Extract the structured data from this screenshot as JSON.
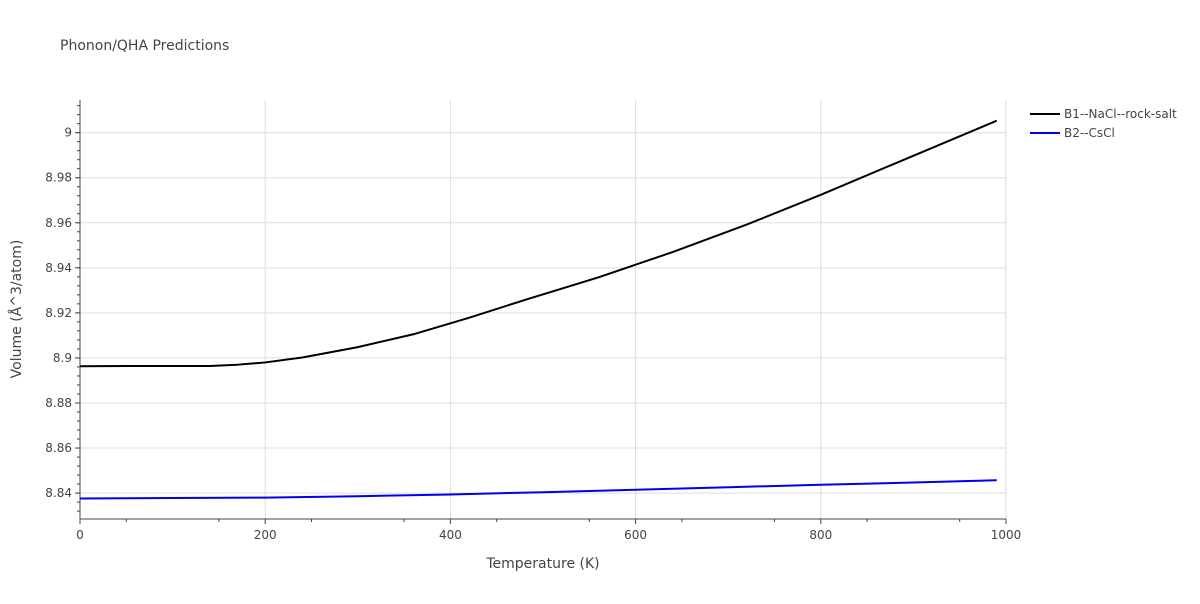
{
  "chart_data": {
    "type": "line",
    "title": "Phonon/QHA Predictions",
    "xlabel": "Temperature (K)",
    "ylabel": "Volume (Å^3/atom)",
    "xlim": [
      0,
      1000
    ],
    "ylim": [
      8.8285,
      9.0145
    ],
    "x_ticks": [
      0,
      200,
      400,
      600,
      800,
      1000
    ],
    "x_tick_labels": [
      "0",
      "200",
      "400",
      "600",
      "800",
      "1000"
    ],
    "y_ticks": [
      8.84,
      8.86,
      8.88,
      8.9,
      8.92,
      8.94,
      8.96,
      8.98,
      9.0
    ],
    "y_tick_labels": [
      "8.84",
      "8.86",
      "8.88",
      "8.9",
      "8.92",
      "8.94",
      "8.96",
      "8.98",
      "9"
    ],
    "grid": true,
    "legend_position": "top-right",
    "series": [
      {
        "name": "B1--NaCl--rock-salt",
        "color": "#000000",
        "x": [
          0,
          50,
          100,
          140,
          170,
          200,
          240,
          290,
          300,
          360,
          420,
          480,
          560,
          640,
          720,
          800,
          880,
          990
        ],
        "y": [
          8.8963,
          8.8964,
          8.8964,
          8.8964,
          8.897,
          8.898,
          8.9002,
          8.904,
          8.9048,
          8.9105,
          8.9178,
          8.9257,
          8.9358,
          8.947,
          8.9592,
          8.9724,
          8.9863,
          9.0053
        ]
      },
      {
        "name": "B2--CsCl",
        "color": "#0000ee",
        "x": [
          0,
          100,
          200,
          300,
          400,
          500,
          600,
          700,
          800,
          900,
          990
        ],
        "y": [
          8.8376,
          8.8378,
          8.838,
          8.8386,
          8.8394,
          8.8404,
          8.8415,
          8.8426,
          8.8437,
          8.8447,
          8.8457
        ]
      }
    ]
  }
}
